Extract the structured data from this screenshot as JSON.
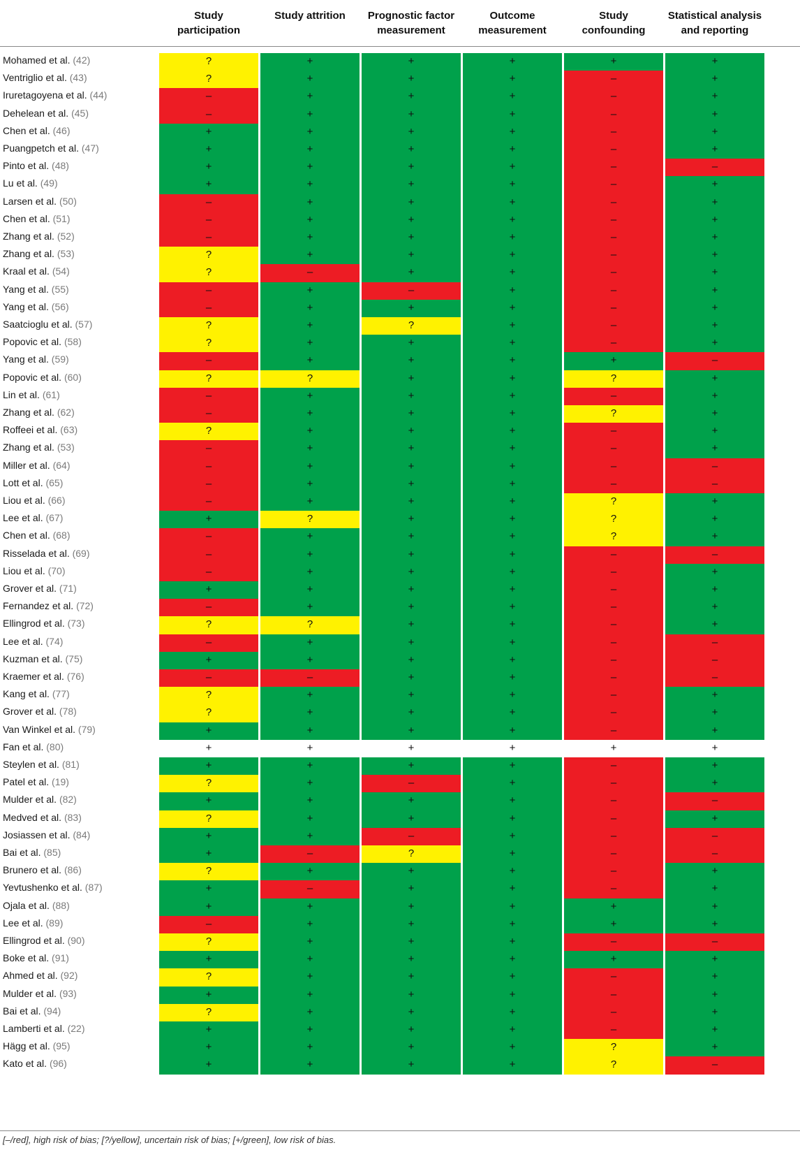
{
  "chart_data": {
    "type": "heatmap",
    "columns": [
      "Study\nparticipation",
      "Study attrition",
      "Prognostic factor\nmeasurement",
      "Outcome\nmeasurement",
      "Study\nconfounding",
      "Statistical analysis\nand reporting"
    ],
    "legend": {
      "-": "red",
      "?": "yellow",
      "+": "green"
    },
    "colors": {
      "red": "#ed1c24",
      "yellow": "#fff200",
      "green": "#00a14b"
    },
    "rows": [
      {
        "name": "Mohamed et al.",
        "ref": "(42)",
        "values": [
          "?",
          "+",
          "+",
          "+",
          "+",
          "+"
        ]
      },
      {
        "name": "Ventriglio et al.",
        "ref": "(43)",
        "values": [
          "?",
          "+",
          "+",
          "+",
          "–",
          "+"
        ]
      },
      {
        "name": "Iruretagoyena et al.",
        "ref": "(44)",
        "values": [
          "–",
          "+",
          "+",
          "+",
          "–",
          "+"
        ]
      },
      {
        "name": "Dehelean et al.",
        "ref": "(45)",
        "values": [
          "–",
          "+",
          "+",
          "+",
          "–",
          "+"
        ]
      },
      {
        "name": "Chen et al.",
        "ref": "(46)",
        "values": [
          "+",
          "+",
          "+",
          "+",
          "–",
          "+"
        ]
      },
      {
        "name": "Puangpetch et al.",
        "ref": "(47)",
        "values": [
          "+",
          "+",
          "+",
          "+",
          "–",
          "+"
        ]
      },
      {
        "name": "Pinto et al.",
        "ref": "(48)",
        "values": [
          "+",
          "+",
          "+",
          "+",
          "–",
          "–"
        ]
      },
      {
        "name": "Lu et al.",
        "ref": "(49)",
        "values": [
          "+",
          "+",
          "+",
          "+",
          "–",
          "+"
        ]
      },
      {
        "name": "Larsen et al.",
        "ref": "(50)",
        "values": [
          "–",
          "+",
          "+",
          "+",
          "–",
          "+"
        ]
      },
      {
        "name": "Chen et al.",
        "ref": "(51)",
        "values": [
          "–",
          "+",
          "+",
          "+",
          "–",
          "+"
        ]
      },
      {
        "name": "Zhang et al.",
        "ref": "(52)",
        "values": [
          "–",
          "+",
          "+",
          "+",
          "–",
          "+"
        ]
      },
      {
        "name": "Zhang et al.",
        "ref": "(53)",
        "values": [
          "?",
          "+",
          "+",
          "+",
          "–",
          "+"
        ]
      },
      {
        "name": "Kraal et al.",
        "ref": "(54)",
        "values": [
          "?",
          "–",
          "+",
          "+",
          "–",
          "+"
        ]
      },
      {
        "name": "Yang et al.",
        "ref": "(55)",
        "values": [
          "–",
          "+",
          "–",
          "+",
          "–",
          "+"
        ]
      },
      {
        "name": "Yang et al.",
        "ref": "(56)",
        "values": [
          "–",
          "+",
          "+",
          "+",
          "–",
          "+"
        ]
      },
      {
        "name": "Saatcioglu et al.",
        "ref": "(57)",
        "values": [
          "?",
          "+",
          "?",
          "+",
          "–",
          "+"
        ]
      },
      {
        "name": "Popovic et al.",
        "ref": "(58)",
        "values": [
          "?",
          "+",
          "+",
          "+",
          "–",
          "+"
        ]
      },
      {
        "name": "Yang et al.",
        "ref": "(59)",
        "values": [
          "–",
          "+",
          "+",
          "+",
          "+",
          "–"
        ]
      },
      {
        "name": "Popovic et al.",
        "ref": "(60)",
        "values": [
          "?",
          "?",
          "+",
          "+",
          "?",
          "+"
        ]
      },
      {
        "name": "Lin et al.",
        "ref": "(61)",
        "values": [
          "–",
          "+",
          "+",
          "+",
          "–",
          "+"
        ]
      },
      {
        "name": "Zhang et al.",
        "ref": "(62)",
        "values": [
          "–",
          "+",
          "+",
          "+",
          "?",
          "+"
        ]
      },
      {
        "name": "Roffeei et al.",
        "ref": "(63)",
        "values": [
          "?",
          "+",
          "+",
          "+",
          "–",
          "+"
        ]
      },
      {
        "name": "Zhang et al.",
        "ref": "(53)",
        "values": [
          "–",
          "+",
          "+",
          "+",
          "–",
          "+"
        ]
      },
      {
        "name": "Miller et al.",
        "ref": "(64)",
        "values": [
          "–",
          "+",
          "+",
          "+",
          "–",
          "–"
        ]
      },
      {
        "name": "Lott et al.",
        "ref": "(65)",
        "values": [
          "–",
          "+",
          "+",
          "+",
          "–",
          "–"
        ]
      },
      {
        "name": "Liou et al.",
        "ref": "(66)",
        "values": [
          "–",
          "+",
          "+",
          "+",
          "?",
          "+"
        ]
      },
      {
        "name": "Lee et al.",
        "ref": "(67)",
        "values": [
          "+",
          "?",
          "+",
          "+",
          "?",
          "+"
        ]
      },
      {
        "name": "Chen et al.",
        "ref": "(68)",
        "values": [
          "–",
          "+",
          "+",
          "+",
          "?",
          "+"
        ]
      },
      {
        "name": "Risselada et al.",
        "ref": "(69)",
        "values": [
          "–",
          "+",
          "+",
          "+",
          "–",
          "–"
        ]
      },
      {
        "name": "Liou et al.",
        "ref": "(70)",
        "values": [
          "–",
          "+",
          "+",
          "+",
          "–",
          "+"
        ]
      },
      {
        "name": "Grover et al.",
        "ref": "(71)",
        "values": [
          "+",
          "+",
          "+",
          "+",
          "–",
          "+"
        ]
      },
      {
        "name": "Fernandez et al.",
        "ref": "(72)",
        "values": [
          "–",
          "+",
          "+",
          "+",
          "–",
          "+"
        ]
      },
      {
        "name": "Ellingrod et al.",
        "ref": "(73)",
        "values": [
          "?",
          "?",
          "+",
          "+",
          "–",
          "+"
        ]
      },
      {
        "name": "Lee et al.",
        "ref": "(74)",
        "values": [
          "–",
          "+",
          "+",
          "+",
          "–",
          "–"
        ]
      },
      {
        "name": "Kuzman et al.",
        "ref": "(75)",
        "values": [
          "+",
          "+",
          "+",
          "+",
          "–",
          "–"
        ]
      },
      {
        "name": "Kraemer et al.",
        "ref": "(76)",
        "values": [
          "–",
          "–",
          "+",
          "+",
          "–",
          "–"
        ]
      },
      {
        "name": "Kang et al.",
        "ref": "(77)",
        "values": [
          "?",
          "+",
          "+",
          "+",
          "–",
          "+"
        ]
      },
      {
        "name": "Grover et al.",
        "ref": "(78)",
        "values": [
          "?",
          "+",
          "+",
          "+",
          "–",
          "+"
        ]
      },
      {
        "name": "Van Winkel et al.",
        "ref": "(79)",
        "values": [
          "+",
          "+",
          "+",
          "+",
          "–",
          "+"
        ]
      },
      {
        "name": "Fan et al.",
        "ref": "(80)",
        "values": [
          "+",
          "+",
          "+",
          "+",
          "+",
          "+"
        ],
        "uncolored": true
      },
      {
        "name": "Steylen et al.",
        "ref": "(81)",
        "values": [
          "+",
          "+",
          "+",
          "+",
          "–",
          "+"
        ]
      },
      {
        "name": "Patel et al.",
        "ref": "(19)",
        "values": [
          "?",
          "+",
          "–",
          "+",
          "–",
          "+"
        ]
      },
      {
        "name": "Mulder et al.",
        "ref": "(82)",
        "values": [
          "+",
          "+",
          "+",
          "+",
          "–",
          "–"
        ]
      },
      {
        "name": "Medved et al.",
        "ref": "(83)",
        "values": [
          "?",
          "+",
          "+",
          "+",
          "–",
          "+"
        ]
      },
      {
        "name": "Josiassen et al.",
        "ref": "(84)",
        "values": [
          "+",
          "+",
          "–",
          "+",
          "–",
          "–"
        ]
      },
      {
        "name": "Bai et al.",
        "ref": "(85)",
        "values": [
          "+",
          "–",
          "?",
          "+",
          "–",
          "–"
        ]
      },
      {
        "name": "Brunero et al.",
        "ref": "(86)",
        "values": [
          "?",
          "+",
          "+",
          "+",
          "–",
          "+"
        ]
      },
      {
        "name": "Yevtushenko et al.",
        "ref": "(87)",
        "values": [
          "+",
          "–",
          "+",
          "+",
          "–",
          "+"
        ]
      },
      {
        "name": "Ojala et al.",
        "ref": "(88)",
        "values": [
          "+",
          "+",
          "+",
          "+",
          "+",
          "+"
        ]
      },
      {
        "name": "Lee et al.",
        "ref": "(89)",
        "values": [
          "–",
          "+",
          "+",
          "+",
          "+",
          "+"
        ]
      },
      {
        "name": "Ellingrod et al.",
        "ref": "(90)",
        "values": [
          "?",
          "+",
          "+",
          "+",
          "–",
          "–"
        ]
      },
      {
        "name": "Boke et al.",
        "ref": "(91)",
        "values": [
          "+",
          "+",
          "+",
          "+",
          "+",
          "+"
        ]
      },
      {
        "name": "Ahmed et al.",
        "ref": "(92)",
        "values": [
          "?",
          "+",
          "+",
          "+",
          "–",
          "+"
        ]
      },
      {
        "name": "Mulder et al.",
        "ref": "(93)",
        "values": [
          "+",
          "+",
          "+",
          "+",
          "–",
          "+"
        ]
      },
      {
        "name": "Bai et al.",
        "ref": "(94)",
        "values": [
          "?",
          "+",
          "+",
          "+",
          "–",
          "+"
        ]
      },
      {
        "name": "Lamberti et al.",
        "ref": "(22)",
        "values": [
          "+",
          "+",
          "+",
          "+",
          "–",
          "+"
        ]
      },
      {
        "name": "Hägg et al.",
        "ref": "(95)",
        "values": [
          "+",
          "+",
          "+",
          "+",
          "?",
          "+"
        ]
      },
      {
        "name": "Kato et al.",
        "ref": "(96)",
        "values": [
          "+",
          "+",
          "+",
          "+",
          "?",
          "–"
        ]
      }
    ]
  },
  "footnote": "[–/red], high risk of bias; [?/yellow], uncertain risk of bias; [+/green], low risk of bias."
}
